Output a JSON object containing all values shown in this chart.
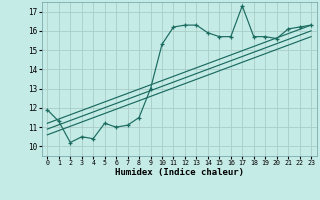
{
  "title": "",
  "xlabel": "Humidex (Indice chaleur)",
  "ylabel": "",
  "bg_color": "#c5ebe6",
  "grid_color": "#aacdc8",
  "line_color": "#1a6b60",
  "x_ticks": [
    0,
    1,
    2,
    3,
    4,
    5,
    6,
    7,
    8,
    9,
    10,
    11,
    12,
    13,
    14,
    15,
    16,
    17,
    18,
    19,
    20,
    21,
    22,
    23
  ],
  "y_ticks": [
    10,
    11,
    12,
    13,
    14,
    15,
    16,
    17
  ],
  "xlim": [
    -0.5,
    23.5
  ],
  "ylim": [
    9.5,
    17.5
  ],
  "line1_x": [
    0,
    1,
    2,
    3,
    4,
    5,
    6,
    7,
    8,
    9,
    10,
    11,
    12,
    13,
    14,
    15,
    16,
    17,
    18,
    19,
    20,
    21,
    22,
    23
  ],
  "line1_y": [
    11.9,
    11.3,
    10.2,
    10.5,
    10.4,
    11.2,
    11.0,
    11.1,
    11.5,
    13.0,
    15.3,
    16.2,
    16.3,
    16.3,
    15.9,
    15.7,
    15.7,
    17.3,
    15.7,
    15.7,
    15.6,
    16.1,
    16.2,
    16.3
  ],
  "line2_x": [
    0,
    23
  ],
  "line2_y": [
    11.2,
    16.3
  ],
  "line3_x": [
    0,
    23
  ],
  "line3_y": [
    10.9,
    16.0
  ],
  "line4_x": [
    0,
    23
  ],
  "line4_y": [
    10.6,
    15.7
  ]
}
